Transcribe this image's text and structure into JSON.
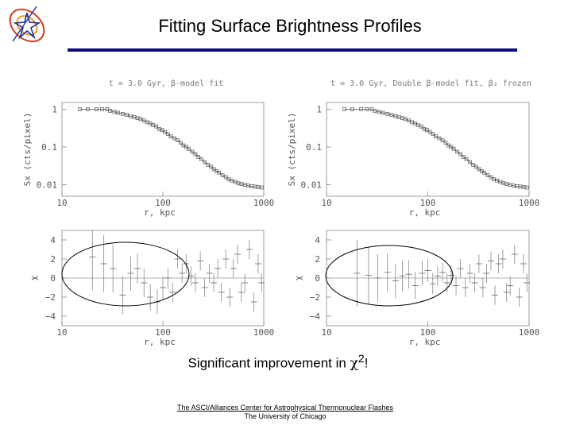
{
  "slide": {
    "title": "Fitting Surface Brightness Profiles",
    "caption_prefix": "Significant improvement in ",
    "caption_symbol": "χ",
    "caption_sup": "2",
    "caption_suffix": "!",
    "footer_line1": "The ASCI/Alliances Center for Astrophysical Thermonuclear Flashes",
    "footer_line2": "The University of Chicago",
    "rule_color": "#0a0a78"
  },
  "chart_data": [
    {
      "type": "scatter",
      "title": "t = 3.0 Gyr, β-model fit",
      "xlabel": "r, kpc",
      "ylabel": "Sx (cts/pixel)",
      "xscale": "log",
      "yscale": "log",
      "xlim": [
        10,
        1000
      ],
      "ylim": [
        0.005,
        1.5
      ],
      "xticks": [
        "10",
        "100",
        "1000"
      ],
      "yticks": [
        "1",
        "0.1",
        "0.01"
      ],
      "series": [
        {
          "values_x": [
            15,
            18,
            22,
            25,
            28,
            30,
            33,
            36,
            40,
            44,
            48,
            52,
            56,
            60,
            65,
            70,
            75,
            80,
            86,
            92,
            98,
            105,
            112,
            120,
            130,
            140,
            150,
            160,
            170,
            180,
            195,
            210,
            225,
            240,
            260,
            280,
            300,
            320,
            340,
            360,
            390,
            420,
            450,
            480,
            520,
            560,
            600,
            650,
            700,
            760,
            820,
            880,
            950
          ],
          "values_y": [
            1.0,
            1.0,
            1.0,
            1.0,
            1.0,
            0.9,
            0.85,
            0.8,
            0.75,
            0.7,
            0.65,
            0.62,
            0.58,
            0.55,
            0.5,
            0.45,
            0.42,
            0.38,
            0.35,
            0.3,
            0.28,
            0.25,
            0.22,
            0.19,
            0.17,
            0.15,
            0.13,
            0.11,
            0.1,
            0.09,
            0.075,
            0.065,
            0.055,
            0.048,
            0.04,
            0.034,
            0.03,
            0.026,
            0.023,
            0.021,
            0.018,
            0.016,
            0.014,
            0.013,
            0.012,
            0.011,
            0.0105,
            0.01,
            0.0095,
            0.0092,
            0.009,
            0.0088,
            0.0085
          ]
        }
      ]
    },
    {
      "type": "scatter",
      "title": "t = 3.0 Gyr, Double β-model fit, β₂ frozen",
      "xlabel": "r, kpc",
      "ylabel": "Sx (cts/pixel)",
      "xscale": "log",
      "yscale": "log",
      "xlim": [
        10,
        1000
      ],
      "ylim": [
        0.005,
        1.5
      ],
      "xticks": [
        "10",
        "100",
        "1000"
      ],
      "yticks": [
        "1",
        "0.1",
        "0.01"
      ],
      "series": [
        {
          "values_x": [
            15,
            18,
            22,
            25,
            28,
            30,
            33,
            36,
            40,
            44,
            48,
            52,
            56,
            60,
            65,
            70,
            75,
            80,
            86,
            92,
            98,
            105,
            112,
            120,
            130,
            140,
            150,
            160,
            170,
            180,
            195,
            210,
            225,
            240,
            260,
            280,
            300,
            320,
            340,
            360,
            390,
            420,
            450,
            480,
            520,
            560,
            600,
            650,
            700,
            760,
            820,
            880,
            950
          ],
          "values_y": [
            1.0,
            1.0,
            1.0,
            1.0,
            1.0,
            0.9,
            0.85,
            0.8,
            0.75,
            0.7,
            0.65,
            0.62,
            0.58,
            0.55,
            0.5,
            0.45,
            0.42,
            0.38,
            0.35,
            0.3,
            0.28,
            0.25,
            0.22,
            0.19,
            0.17,
            0.15,
            0.13,
            0.11,
            0.1,
            0.09,
            0.075,
            0.065,
            0.055,
            0.048,
            0.04,
            0.034,
            0.03,
            0.026,
            0.023,
            0.021,
            0.018,
            0.016,
            0.014,
            0.013,
            0.012,
            0.011,
            0.0105,
            0.01,
            0.0095,
            0.0092,
            0.009,
            0.0088,
            0.0085
          ]
        }
      ]
    },
    {
      "type": "scatter",
      "title": "",
      "xlabel": "r, kpc",
      "ylabel": "χ",
      "xscale": "log",
      "xlim": [
        10,
        1000
      ],
      "ylim": [
        -5,
        5
      ],
      "xticks": [
        "10",
        "100",
        "1000"
      ],
      "yticks": [
        "4",
        "2",
        "0",
        "−2",
        "−4"
      ],
      "series": [
        {
          "values_x": [
            20,
            26,
            32,
            40,
            48,
            56,
            65,
            75,
            88,
            100,
            112,
            125,
            140,
            155,
            170,
            190,
            210,
            235,
            260,
            290,
            320,
            350,
            380,
            420,
            460,
            500,
            550,
            600,
            650,
            720,
            800,
            880,
            950
          ],
          "values_y": [
            2.2,
            1.5,
            1.0,
            -1.8,
            0.5,
            1.0,
            -0.5,
            -2.0,
            -2.5,
            -1.0,
            0.0,
            -1.5,
            2.0,
            0.5,
            1.5,
            0.2,
            -0.5,
            1.8,
            -1.0,
            0.5,
            -0.5,
            1.0,
            -1.5,
            2.0,
            -2.0,
            1.0,
            2.5,
            -1.5,
            -0.5,
            3.0,
            -2.5,
            1.5,
            -0.5
          ],
          "errors": [
            3.5,
            3.0,
            2.5,
            2.0,
            1.8,
            1.6,
            1.5,
            1.4,
            1.3,
            1.2,
            1.1,
            1.0,
            1.0,
            1.0,
            1.0,
            1.0,
            1.0,
            1.0,
            1.0,
            1.0,
            1.0,
            1.0,
            1.0,
            1.0,
            1.0,
            1.0,
            1.0,
            1.0,
            1.0,
            1.0,
            1.0,
            1.0,
            1.0
          ]
        }
      ]
    },
    {
      "type": "scatter",
      "title": "",
      "xlabel": "r, kpc",
      "ylabel": "χ",
      "xscale": "log",
      "xlim": [
        10,
        1000
      ],
      "ylim": [
        -5,
        5
      ],
      "xticks": [
        "10",
        "100",
        "1000"
      ],
      "yticks": [
        "4",
        "2",
        "0",
        "−2",
        "−4"
      ],
      "series": [
        {
          "values_x": [
            20,
            26,
            32,
            40,
            48,
            56,
            65,
            75,
            88,
            100,
            112,
            125,
            140,
            155,
            170,
            190,
            210,
            235,
            260,
            290,
            320,
            350,
            380,
            420,
            460,
            500,
            550,
            600,
            650,
            720,
            800,
            880,
            950
          ],
          "values_y": [
            0.5,
            0.3,
            0.0,
            0.6,
            -0.3,
            0.2,
            0.4,
            -0.8,
            0.5,
            0.8,
            -0.6,
            0.2,
            0.6,
            -0.5,
            0.3,
            -0.8,
            1.0,
            -1.0,
            0.5,
            -0.5,
            1.5,
            -1.0,
            0.5,
            1.8,
            -1.8,
            1.5,
            2.0,
            -1.5,
            -0.8,
            2.5,
            -2.0,
            1.5,
            -0.5
          ],
          "errors": [
            3.5,
            3.0,
            2.5,
            2.0,
            1.8,
            1.6,
            1.5,
            1.4,
            1.3,
            1.2,
            1.1,
            1.0,
            1.0,
            1.0,
            1.0,
            1.0,
            1.0,
            1.0,
            1.0,
            1.0,
            1.0,
            1.0,
            1.0,
            1.0,
            1.0,
            1.0,
            1.0,
            1.0,
            1.0,
            1.0,
            1.0,
            1.0,
            1.0
          ]
        }
      ]
    }
  ]
}
